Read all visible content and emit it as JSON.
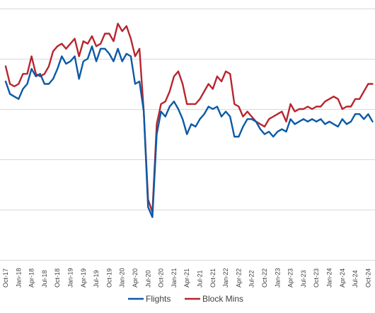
{
  "chart_data": {
    "type": "line",
    "grid": true,
    "legend_position": "bottom",
    "x": [
      "Oct-17",
      "Nov-17",
      "Dec-17",
      "Jan-18",
      "Feb-18",
      "Mar-18",
      "Apr-18",
      "May-18",
      "Jun-18",
      "Jul-18",
      "Aug-18",
      "Sep-18",
      "Oct-18",
      "Nov-18",
      "Dec-18",
      "Jan-19",
      "Feb-19",
      "Mar-19",
      "Apr-19",
      "May-19",
      "Jun-19",
      "Jul-19",
      "Aug-19",
      "Sep-19",
      "Oct-19",
      "Nov-19",
      "Dec-19",
      "Jan-20",
      "Feb-20",
      "Mar-20",
      "Apr-20",
      "May-20",
      "Jun-20",
      "Jul-20",
      "Aug-20",
      "Sep-20",
      "Oct-20",
      "Nov-20",
      "Dec-20",
      "Jan-21",
      "Feb-21",
      "Mar-21",
      "Apr-21",
      "May-21",
      "Jun-21",
      "Jul-21",
      "Aug-21",
      "Sep-21",
      "Oct-21",
      "Nov-21",
      "Dec-21",
      "Jan-22",
      "Feb-22",
      "Mar-22",
      "Apr-22",
      "May-22",
      "Jun-22",
      "Jul-22",
      "Aug-22",
      "Sep-22",
      "Oct-22",
      "Nov-22",
      "Dec-22",
      "Jan-23",
      "Feb-23",
      "Mar-23",
      "Apr-23",
      "May-23",
      "Jun-23",
      "Jul-23",
      "Aug-23",
      "Sep-23",
      "Oct-23",
      "Nov-23",
      "Dec-23",
      "Jan-24",
      "Feb-24",
      "Mar-24",
      "Apr-24",
      "May-24",
      "Jun-24",
      "Jul-24",
      "Aug-24",
      "Sep-24",
      "Oct-24",
      "Nov-24"
    ],
    "x_tick_labels": [
      "Oct-17",
      "Jan-18",
      "Apr-18",
      "Jul-18",
      "Oct-18",
      "Jan-19",
      "Apr-19",
      "Jul-19",
      "Oct-19",
      "Jan-20",
      "Apr-20",
      "Jul-20",
      "Oct-20",
      "Jan-21",
      "Apr-21",
      "Jul-21",
      "Oct-21",
      "Jan-22",
      "Apr-22",
      "Jul-22",
      "Oct-22",
      "Jan-23",
      "Apr-23",
      "Jul-23",
      "Oct-23",
      "Jan-24",
      "Apr-24",
      "Jul-24",
      "Oct-24"
    ],
    "ylim": [
      0,
      5
    ],
    "y_gridlines": [
      1,
      2,
      3,
      4,
      5
    ],
    "series": [
      {
        "name": "Flights",
        "color": "#0b5aa5",
        "values": [
          3.55,
          3.3,
          3.25,
          3.2,
          3.4,
          3.5,
          3.8,
          3.65,
          3.7,
          3.5,
          3.5,
          3.6,
          3.8,
          4.05,
          3.9,
          3.95,
          4.05,
          3.6,
          3.95,
          4.0,
          4.25,
          3.95,
          4.2,
          4.2,
          4.1,
          3.95,
          4.2,
          3.95,
          4.1,
          4.05,
          3.5,
          3.55,
          2.95,
          1.05,
          0.85,
          2.5,
          2.95,
          2.85,
          3.05,
          3.15,
          3.0,
          2.8,
          2.5,
          2.7,
          2.65,
          2.8,
          2.9,
          3.05,
          3.0,
          3.05,
          2.85,
          2.95,
          2.85,
          2.45,
          2.45,
          2.65,
          2.8,
          2.8,
          2.75,
          2.6,
          2.5,
          2.55,
          2.45,
          2.55,
          2.6,
          2.55,
          2.8,
          2.7,
          2.75,
          2.8,
          2.75,
          2.8,
          2.75,
          2.8,
          2.7,
          2.75,
          2.7,
          2.65,
          2.8,
          2.7,
          2.75,
          2.9,
          2.9,
          2.8,
          2.9,
          2.75
        ]
      },
      {
        "name": "Block Mins",
        "color": "#b8252e",
        "values": [
          3.85,
          3.5,
          3.45,
          3.5,
          3.7,
          3.7,
          4.05,
          3.7,
          3.65,
          3.7,
          3.85,
          4.15,
          4.25,
          4.3,
          4.2,
          4.3,
          4.4,
          4.05,
          4.35,
          4.3,
          4.45,
          4.25,
          4.3,
          4.5,
          4.5,
          4.35,
          4.7,
          4.55,
          4.65,
          4.4,
          4.05,
          4.2,
          2.95,
          1.2,
          0.95,
          2.7,
          3.1,
          3.15,
          3.35,
          3.65,
          3.75,
          3.5,
          3.1,
          3.1,
          3.1,
          3.2,
          3.35,
          3.5,
          3.4,
          3.65,
          3.55,
          3.75,
          3.7,
          3.1,
          3.05,
          2.85,
          2.95,
          2.85,
          2.75,
          2.7,
          2.65,
          2.8,
          2.85,
          2.9,
          2.95,
          2.75,
          3.1,
          2.95,
          3.0,
          3.0,
          3.05,
          3.0,
          3.05,
          3.05,
          3.15,
          3.2,
          3.25,
          3.2,
          3.0,
          3.05,
          3.05,
          3.2,
          3.2,
          3.35,
          3.5,
          3.5
        ]
      }
    ]
  }
}
